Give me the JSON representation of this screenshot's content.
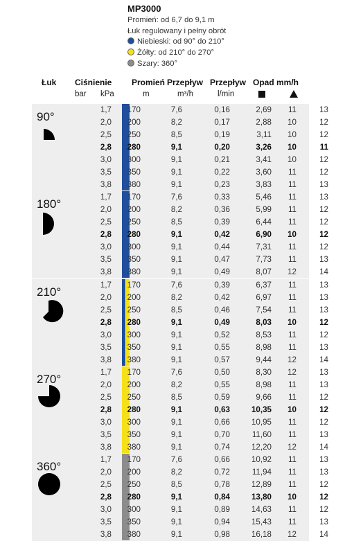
{
  "header": {
    "model": "MP3000",
    "lines": [
      {
        "text": "Promień: od 6,7 do 9,1 m",
        "dot": null
      },
      {
        "text": "Łuk regulowany i pełny obrót",
        "dot": null
      },
      {
        "text": "Niebieski: od 90° do 210°",
        "dot": "#1f4e9c"
      },
      {
        "text": "Żółty: od 210° do 270°",
        "dot": "#f4e01b"
      },
      {
        "text": "Szary: 360°",
        "dot": "#8c8c8c"
      }
    ]
  },
  "columns": {
    "luk": "Łuk",
    "cisnienie": "Ciśnienie",
    "promien": "Promień",
    "przeplyw1": "Przepływ",
    "przeplyw2": "Przepływ",
    "opad": "Opad mm/h",
    "units": {
      "bar": "bar",
      "kpa": "kPa",
      "m": "m",
      "m3h": "m³/h",
      "lmin": "l/min"
    }
  },
  "colors": {
    "blue": "#1f4e9c",
    "yellow": "#f4e01b",
    "gray": "#8c8c8c",
    "band": "#eeeeee"
  },
  "groups": [
    {
      "arc": "90°",
      "bars": [
        "blue"
      ],
      "rows": [
        [
          "1,7",
          "170",
          "7,6",
          "0,16",
          "2,69",
          "11",
          "13"
        ],
        [
          "2,0",
          "200",
          "8,2",
          "0,17",
          "2,88",
          "10",
          "12"
        ],
        [
          "2,5",
          "250",
          "8,5",
          "0,19",
          "3,11",
          "10",
          "12"
        ],
        [
          "2,8",
          "280",
          "9,1",
          "0,20",
          "3,26",
          "10",
          "11"
        ],
        [
          "3,0",
          "300",
          "9,1",
          "0,21",
          "3,41",
          "10",
          "12"
        ],
        [
          "3,5",
          "350",
          "9,1",
          "0,22",
          "3,60",
          "11",
          "12"
        ],
        [
          "3,8",
          "380",
          "9,1",
          "0,23",
          "3,83",
          "11",
          "13"
        ]
      ]
    },
    {
      "arc": "180°",
      "bars": [
        "blue"
      ],
      "rows": [
        [
          "1,7",
          "170",
          "7,6",
          "0,33",
          "5,46",
          "11",
          "13"
        ],
        [
          "2,0",
          "200",
          "8,2",
          "0,36",
          "5,99",
          "11",
          "12"
        ],
        [
          "2,5",
          "250",
          "8,5",
          "0,39",
          "6,44",
          "11",
          "12"
        ],
        [
          "2,8",
          "280",
          "9,1",
          "0,42",
          "6,90",
          "10",
          "12"
        ],
        [
          "3,0",
          "300",
          "9,1",
          "0,44",
          "7,31",
          "11",
          "12"
        ],
        [
          "3,5",
          "350",
          "9,1",
          "0,47",
          "7,73",
          "11",
          "13"
        ],
        [
          "3,8",
          "380",
          "9,1",
          "0,49",
          "8,07",
          "12",
          "14"
        ]
      ]
    },
    {
      "arc": "210°",
      "bars": [
        "blue",
        "yellow"
      ],
      "rows": [
        [
          "1,7",
          "170",
          "7,6",
          "0,39",
          "6,37",
          "11",
          "13"
        ],
        [
          "2,0",
          "200",
          "8,2",
          "0,42",
          "6,97",
          "11",
          "13"
        ],
        [
          "2,5",
          "250",
          "8,5",
          "0,46",
          "7,54",
          "11",
          "13"
        ],
        [
          "2,8",
          "280",
          "9,1",
          "0,49",
          "8,03",
          "10",
          "12"
        ],
        [
          "3,0",
          "300",
          "9,1",
          "0,52",
          "8,53",
          "11",
          "12"
        ],
        [
          "3,5",
          "350",
          "9,1",
          "0,55",
          "8,98",
          "11",
          "13"
        ],
        [
          "3,8",
          "380",
          "9,1",
          "0,57",
          "9,44",
          "12",
          "14"
        ]
      ]
    },
    {
      "arc": "270°",
      "bars": [
        "yellow"
      ],
      "rows": [
        [
          "1,7",
          "170",
          "7,6",
          "0,50",
          "8,30",
          "12",
          "13"
        ],
        [
          "2,0",
          "200",
          "8,2",
          "0,55",
          "8,98",
          "11",
          "13"
        ],
        [
          "2,5",
          "250",
          "8,5",
          "0,59",
          "9,66",
          "11",
          "12"
        ],
        [
          "2,8",
          "280",
          "9,1",
          "0,63",
          "10,35",
          "10",
          "12"
        ],
        [
          "3,0",
          "300",
          "9,1",
          "0,66",
          "10,95",
          "11",
          "12"
        ],
        [
          "3,5",
          "350",
          "9,1",
          "0,70",
          "11,60",
          "11",
          "13"
        ],
        [
          "3,8",
          "380",
          "9,1",
          "0,74",
          "12,20",
          "12",
          "14"
        ]
      ]
    },
    {
      "arc": "360°",
      "bars": [
        "gray"
      ],
      "rows": [
        [
          "1,7",
          "170",
          "7,6",
          "0,66",
          "10,92",
          "11",
          "13"
        ],
        [
          "2,0",
          "200",
          "8,2",
          "0,72",
          "11,94",
          "11",
          "13"
        ],
        [
          "2,5",
          "250",
          "8,5",
          "0,78",
          "12,89",
          "11",
          "12"
        ],
        [
          "2,8",
          "280",
          "9,1",
          "0,84",
          "13,80",
          "10",
          "12"
        ],
        [
          "3,0",
          "300",
          "9,1",
          "0,89",
          "14,63",
          "11",
          "12"
        ],
        [
          "3,5",
          "350",
          "9,1",
          "0,94",
          "15,43",
          "11",
          "13"
        ],
        [
          "3,8",
          "380",
          "9,1",
          "0,98",
          "16,18",
          "12",
          "14"
        ]
      ]
    }
  ]
}
